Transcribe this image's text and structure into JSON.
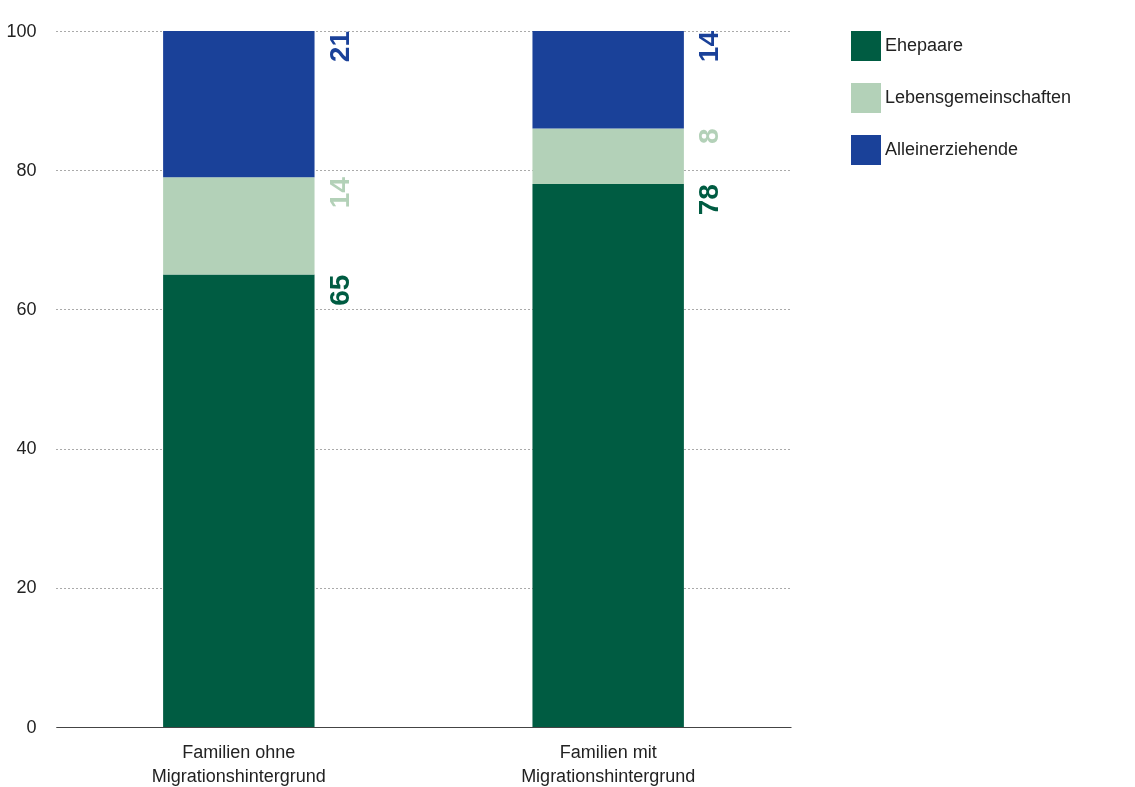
{
  "chart_data": {
    "type": "bar",
    "stacked": true,
    "categories": [
      "Familien ohne Migrationshintergrund",
      "Familien mit Migrationshintergrund"
    ],
    "series": [
      {
        "name": "Ehepaare",
        "color": "#005c42",
        "values": [
          65,
          78
        ]
      },
      {
        "name": "Lebensgemeinschaften",
        "color": "#b3d1b8",
        "values": [
          14,
          8
        ]
      },
      {
        "name": "Alleinerziehende",
        "color": "#1a4199",
        "values": [
          21,
          14
        ]
      }
    ],
    "ylim": [
      0,
      100
    ],
    "yticks": [
      0,
      20,
      40,
      60,
      80,
      100
    ],
    "grid": "y",
    "legend": "top right",
    "data_labels": true
  }
}
